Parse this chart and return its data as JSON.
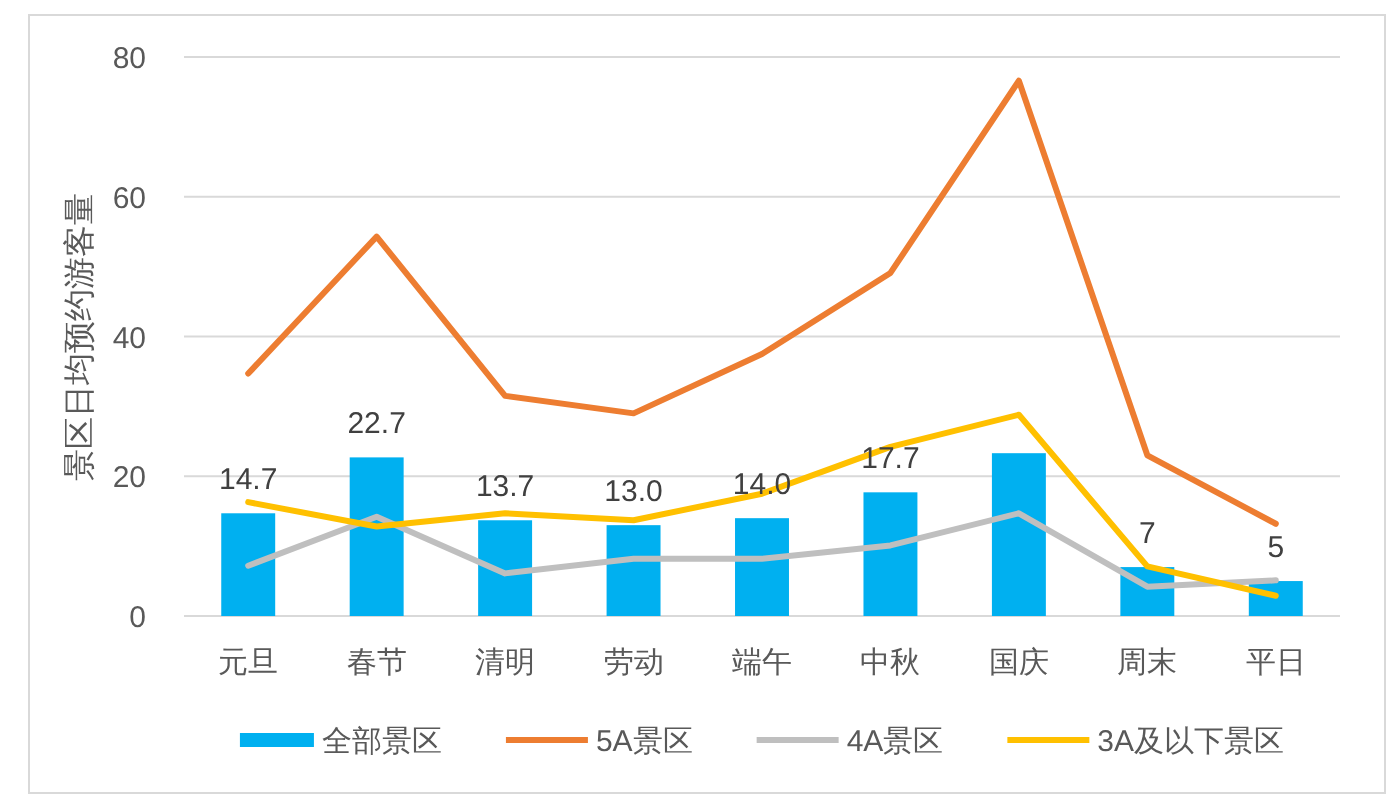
{
  "chart_data": {
    "type": "bar",
    "ylabel": "景区日均预约游客量",
    "categories": [
      "元旦",
      "春节",
      "清明",
      "劳动",
      "端午",
      "中秋",
      "国庆",
      "周末",
      "平日"
    ],
    "series": [
      {
        "name": "全部景区",
        "color": "#00b0f0",
        "values": [
          14.7,
          22.7,
          13.7,
          13.0,
          14.0,
          17.7,
          23.3,
          7,
          5
        ],
        "value_labels": [
          "14.7",
          "22.7",
          "13.7",
          "13.0",
          "14.0",
          "17.7",
          null,
          "7",
          "5"
        ]
      },
      {
        "name": "5A景区",
        "type": "line",
        "color": "#ed7d31",
        "values": [
          34.7,
          54.3,
          31.5,
          29.0,
          37.5,
          49.1,
          76.6,
          23.0,
          13.2
        ]
      },
      {
        "name": "4A景区",
        "type": "line",
        "color": "#bfbfbf",
        "values": [
          7.2,
          14.2,
          6.1,
          8.2,
          8.2,
          10.1,
          14.7,
          4.2,
          5.1
        ]
      },
      {
        "name": "3A及以下景区",
        "type": "line",
        "color": "#ffc000",
        "values": [
          16.3,
          12.8,
          14.7,
          13.7,
          17.5,
          24.2,
          28.8,
          7.1,
          2.9
        ]
      }
    ],
    "ylim": [
      0,
      80
    ],
    "yticks": [
      0,
      20,
      40,
      60,
      80
    ],
    "grid": "y",
    "legend": "bottom"
  }
}
